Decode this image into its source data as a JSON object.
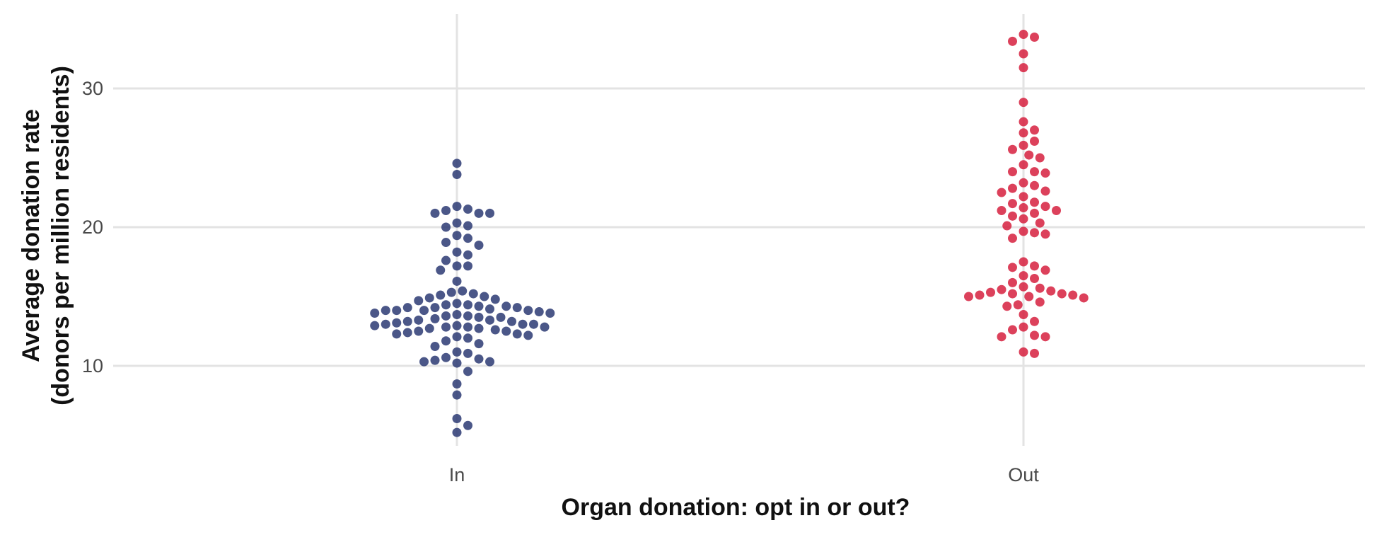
{
  "chart_data": {
    "type": "scatter",
    "subtype": "beeswarm",
    "title": "",
    "xlabel": "Organ donation: opt in or out?",
    "ylabel_line1": "Average donation rate",
    "ylabel_line2": "(donors per million residents)",
    "categories": [
      "In",
      "Out"
    ],
    "ylim": [
      4,
      35
    ],
    "yticks": [
      10,
      20,
      30
    ],
    "grid": true,
    "legend": "none",
    "series": [
      {
        "category": "In",
        "color": "#2b3a73",
        "values": [
          24.6,
          23.8,
          21.5,
          21.3,
          21.2,
          21.0,
          21.0,
          21.0,
          20.3,
          20.1,
          20.0,
          19.4,
          19.2,
          18.9,
          18.7,
          18.2,
          18.0,
          17.6,
          17.2,
          17.2,
          16.9,
          16.1,
          15.4,
          15.3,
          15.2,
          15.1,
          15.0,
          14.9,
          14.8,
          14.7,
          14.5,
          14.4,
          14.4,
          14.3,
          14.3,
          14.2,
          14.2,
          14.2,
          14.1,
          14.0,
          14.0,
          14.0,
          14.0,
          13.9,
          13.8,
          13.8,
          13.7,
          13.6,
          13.6,
          13.5,
          13.5,
          13.4,
          13.3,
          13.3,
          13.2,
          13.2,
          13.1,
          13.0,
          13.0,
          13.0,
          12.9,
          12.9,
          12.8,
          12.8,
          12.8,
          12.7,
          12.7,
          12.6,
          12.5,
          12.5,
          12.4,
          12.3,
          12.3,
          12.2,
          12.1,
          12.0,
          11.8,
          11.6,
          11.4,
          11.0,
          10.9,
          10.6,
          10.5,
          10.4,
          10.3,
          10.3,
          10.2,
          9.6,
          8.7,
          7.9,
          6.2,
          5.7,
          5.2
        ]
      },
      {
        "category": "Out",
        "color": "#d6203e",
        "values": [
          33.9,
          33.7,
          33.4,
          32.5,
          31.5,
          29.0,
          27.6,
          27.0,
          26.8,
          26.2,
          25.9,
          25.6,
          25.2,
          25.0,
          24.5,
          24.0,
          24.0,
          23.9,
          23.2,
          23.0,
          22.8,
          22.6,
          22.5,
          22.2,
          21.8,
          21.7,
          21.5,
          21.4,
          21.2,
          21.2,
          21.0,
          20.8,
          20.6,
          20.3,
          20.1,
          19.7,
          19.6,
          19.5,
          19.2,
          17.5,
          17.2,
          17.1,
          16.9,
          16.5,
          16.3,
          16.0,
          15.7,
          15.6,
          15.5,
          15.4,
          15.3,
          15.2,
          15.2,
          15.1,
          15.1,
          15.0,
          15.0,
          14.9,
          14.6,
          14.4,
          14.3,
          13.7,
          13.2,
          12.8,
          12.6,
          12.2,
          12.1,
          12.1,
          11.0,
          10.9
        ]
      }
    ]
  }
}
